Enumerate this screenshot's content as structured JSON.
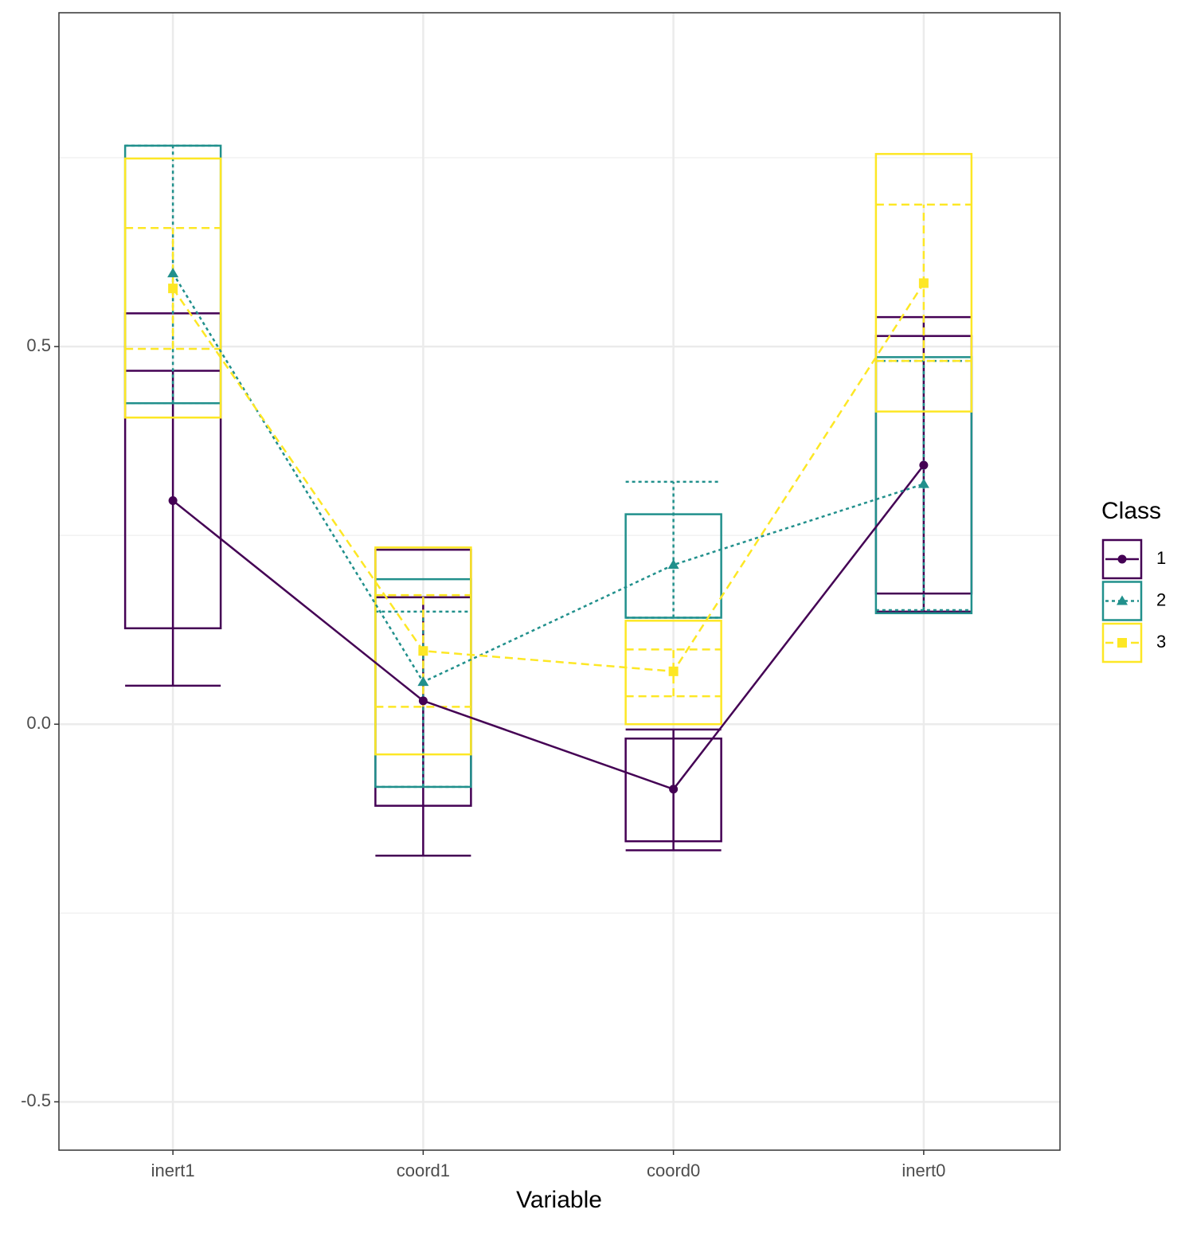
{
  "chart_data": {
    "type": "box",
    "x_label": "Variable",
    "categories": [
      "inert1",
      "coord1",
      "coord0",
      "inert0"
    ],
    "ylim": [
      -0.564,
      0.942
    ],
    "yticks": [
      -0.5,
      {
        "value": 0,
        "label": "0.0"
      },
      0.5
    ],
    "grid": true,
    "legend_title": "Class",
    "legend_position": "right",
    "series": [
      {
        "name": "1",
        "color": "#440154",
        "dash": "solid",
        "marker": "circle",
        "mean": [
          0.296,
          0.031,
          -0.086,
          0.343
        ],
        "box_low": [
          0.127,
          -0.108,
          -0.155,
          0.173
        ],
        "box_high": [
          0.544,
          0.231,
          -0.019,
          0.514
        ],
        "cap_low": [
          0.051,
          -0.174,
          -0.167,
          0.149
        ],
        "cap_high": [
          0.468,
          0.168,
          -0.007,
          0.539
        ]
      },
      {
        "name": "2",
        "color": "#21908C",
        "dash": "dotted",
        "marker": "triangle",
        "mean": [
          0.597,
          0.056,
          0.211,
          0.318
        ],
        "box_low": [
          0.425,
          -0.083,
          0.141,
          0.147
        ],
        "box_high": [
          0.766,
          0.192,
          0.278,
          0.486
        ],
        "cap_low": [
          0.425,
          -0.083,
          0.141,
          0.151
        ],
        "cap_high": [
          0.766,
          0.149,
          0.321,
          0.481
        ]
      },
      {
        "name": "3",
        "color": "#FDE725",
        "dash": "dashed",
        "marker": "square",
        "mean": [
          0.577,
          0.097,
          0.07,
          0.584
        ],
        "box_low": [
          0.406,
          -0.04,
          0.0,
          0.414
        ],
        "box_high": [
          0.749,
          0.234,
          0.137,
          0.755
        ],
        "cap_low": [
          0.497,
          0.023,
          0.037,
          0.481
        ],
        "cap_high": [
          0.657,
          0.171,
          0.099,
          0.688
        ]
      }
    ]
  }
}
